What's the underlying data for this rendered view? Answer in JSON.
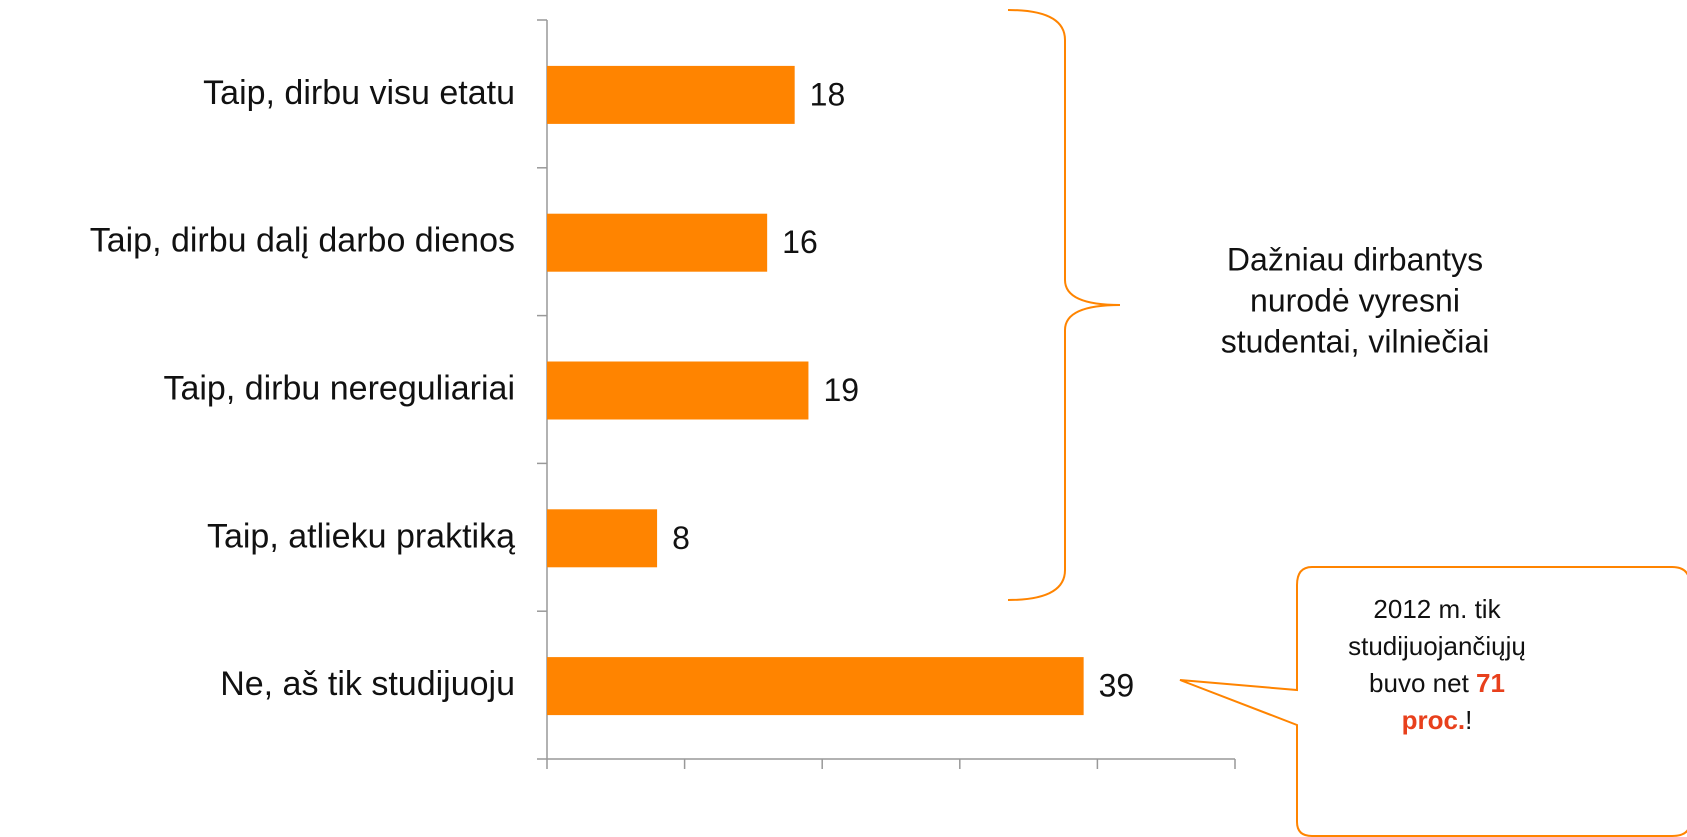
{
  "chart_data": {
    "type": "bar",
    "orientation": "horizontal",
    "categories": [
      "Taip, dirbu visu etatu",
      "Taip, dirbu dalį darbo dienos",
      "Taip, dirbu nereguliariai",
      "Taip, atlieku praktiką",
      "Ne, aš tik studijuoju"
    ],
    "values": [
      18,
      16,
      19,
      8,
      39
    ],
    "color": "#ff8400",
    "xlim": [
      0,
      50
    ],
    "xticks": [
      0,
      10,
      20,
      30,
      40,
      50
    ],
    "annotation_lines": [
      "Dažniau dirbantys",
      "nurodė vyresni",
      "studentai, vilniečiai"
    ],
    "callout_lines": [
      [
        {
          "text": "2012 m. tik"
        }
      ],
      [
        {
          "text": "studijuojančiųjų"
        }
      ],
      [
        {
          "text": "buvo net "
        },
        {
          "text": "71",
          "emphasis": true
        }
      ],
      [
        {
          "text": "proc.",
          "emphasis": true
        },
        {
          "text": "!"
        }
      ]
    ],
    "emphasis_color": "#e8401c"
  }
}
